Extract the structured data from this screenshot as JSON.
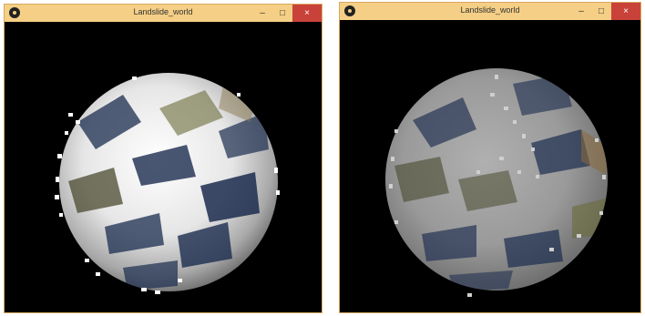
{
  "windows": [
    {
      "title": "Landslide_world",
      "controls": {
        "minimize": "–",
        "maximize": "□",
        "close": "×"
      },
      "scene": {
        "sphere_tone": "white",
        "accent": "#1b2c4f"
      }
    },
    {
      "title": "Landslide_world",
      "controls": {
        "minimize": "–",
        "maximize": "□",
        "close": "×"
      },
      "scene": {
        "sphere_tone": "gray",
        "accent": "#1b2c4f"
      }
    }
  ],
  "colors": {
    "titlebar": "#f4cf85",
    "close_button": "#c9423a",
    "canvas": "#000000",
    "texture_dark": "#1b2c4f",
    "texture_olive": "#6b6a3a"
  },
  "icons": [
    "app-icon",
    "minimize-icon",
    "maximize-icon",
    "close-icon"
  ]
}
